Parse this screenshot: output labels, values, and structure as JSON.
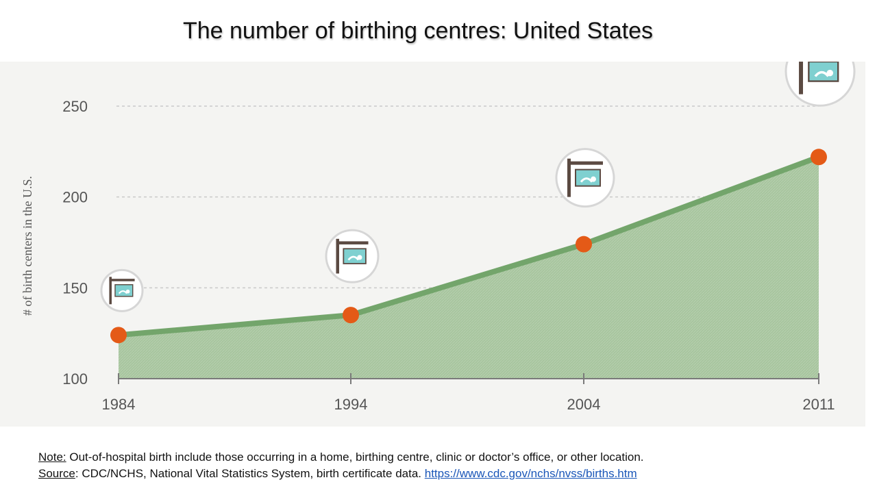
{
  "title": "The number of birthing centres: United States",
  "chart_data": {
    "type": "area",
    "title": "The number of birthing centres: United States",
    "ylabel": "# of birth centers in the U.S.",
    "xlabel": "",
    "categories": [
      "1984",
      "1994",
      "2004",
      "2011"
    ],
    "series": [
      {
        "name": "Birth centers",
        "values": [
          124,
          135,
          174,
          222
        ]
      }
    ],
    "ylim": [
      100,
      250
    ],
    "yticks": [
      "100",
      "150",
      "200",
      "250"
    ],
    "grid": true,
    "colors": {
      "line": "#73a56b",
      "fill": "#a7c59e",
      "marker": "#e45a17",
      "grid": "#c9c9c9",
      "axis": "#7a7a7a",
      "sign": "#7fd0d0",
      "post": "#5b4a42"
    },
    "icons": [
      "birth-center-sign-icon",
      "birth-center-sign-icon",
      "birth-center-sign-icon",
      "birth-center-sign-icon"
    ]
  },
  "footnote": {
    "note_label": "Note:",
    "note_text": " Out-of-hospital birth include those occurring in a home, birthing centre, clinic or doctor’s office, or other location.",
    "source_label": "Source",
    "source_text": ": CDC/NCHS, National Vital Statistics System, birth certificate data. ",
    "source_link": "https://www.cdc.gov/nchs/nvss/births.htm"
  }
}
